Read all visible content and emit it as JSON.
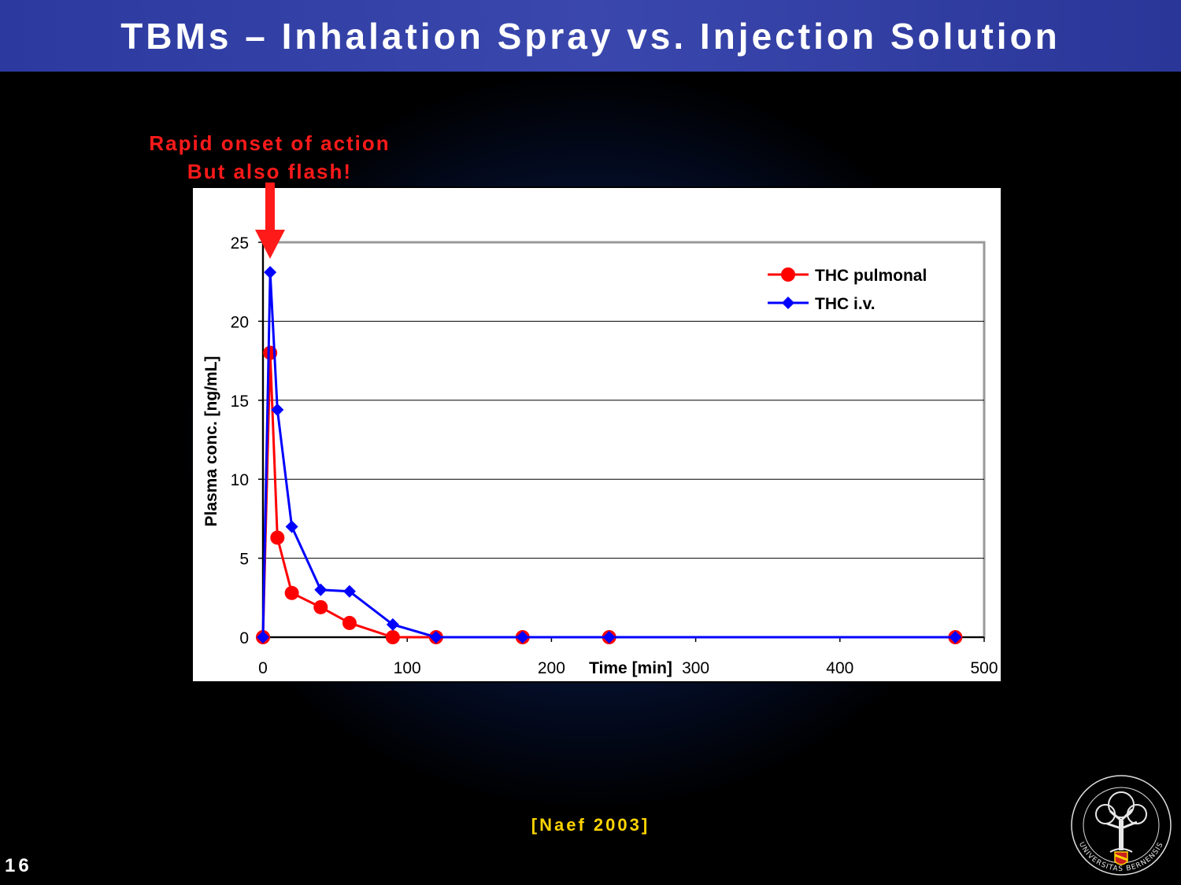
{
  "slide": {
    "title": "TBMs – Inhalation Spray vs. Injection Solution",
    "annotation_line1": "Rapid onset of action",
    "annotation_line2": "But also flash!",
    "citation": "[Naef 2003]",
    "slide_number": "16",
    "logo_text": "UNIVERSITAS BERNENSIS",
    "colors": {
      "title_bar": "#3a47ad",
      "annotation": "#ff1a1a",
      "citation": "#ffd400",
      "series_pulmonal": "#ff0000",
      "series_iv": "#0000ff"
    }
  },
  "chart_data": {
    "type": "line",
    "xlabel": "Time [min]",
    "ylabel": "Plasma conc. [ng/mL]",
    "xlim": [
      0,
      500
    ],
    "ylim": [
      0,
      25
    ],
    "x_ticks": [
      "0",
      "100",
      "200",
      "300",
      "400",
      "500"
    ],
    "y_ticks": [
      "0",
      "5",
      "10",
      "15",
      "20",
      "25"
    ],
    "grid": "horizontal",
    "legend_position": "top-right",
    "series": [
      {
        "name": "THC pulmonal",
        "marker": "circle",
        "color": "#ff0000",
        "x": [
          0,
          5,
          10,
          20,
          40,
          60,
          90,
          120,
          180,
          240,
          480
        ],
        "y": [
          0,
          18,
          6.3,
          2.8,
          1.9,
          0.9,
          0,
          0,
          0,
          0,
          0
        ]
      },
      {
        "name": "THC i.v.",
        "marker": "diamond",
        "color": "#0000ff",
        "x": [
          0,
          5,
          10,
          20,
          40,
          60,
          90,
          120,
          180,
          240,
          480
        ],
        "y": [
          0,
          23.1,
          14.4,
          7,
          3,
          2.9,
          0.8,
          0,
          0,
          0,
          0
        ]
      }
    ]
  }
}
